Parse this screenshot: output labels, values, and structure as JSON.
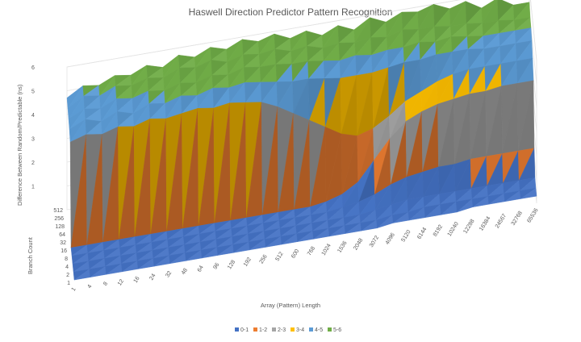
{
  "chart_data": {
    "type": "surface",
    "title": "Haswell Direction Predictor Pattern Recognition",
    "xlabel": "Array (Pattern) Length",
    "ylabel": "Branch Count",
    "zlabel": "Difference Between Random/Predictable (ns)",
    "x": [
      "1",
      "4",
      "8",
      "12",
      "16",
      "24",
      "32",
      "48",
      "64",
      "96",
      "128",
      "192",
      "256",
      "512",
      "600",
      "768",
      "1024",
      "1536",
      "2048",
      "3072",
      "4096",
      "5120",
      "6144",
      "8192",
      "10240",
      "12288",
      "16384",
      "24567",
      "32768",
      "65536"
    ],
    "y": [
      "1",
      "2",
      "4",
      "8",
      "16",
      "32",
      "64",
      "128",
      "256",
      "512"
    ],
    "z_ticks": [
      "1",
      "2",
      "3",
      "4",
      "5",
      "6"
    ],
    "zlim": [
      0,
      6
    ],
    "bands": [
      {
        "name": "0-1",
        "color": "#4472c4"
      },
      {
        "name": "1-2",
        "color": "#ed7d31"
      },
      {
        "name": "2-3",
        "color": "#a5a5a5"
      },
      {
        "name": "3-4",
        "color": "#ffc000"
      },
      {
        "name": "4-5",
        "color": "#5b9bd5"
      },
      {
        "name": "5-6",
        "color": "#70ad47"
      }
    ],
    "legend_position": "bottom",
    "values_note_rows": "approximate surface read from the figure; rows are branch counts 1..512, columns are array lengths",
    "values": [
      [
        0.1,
        0.1,
        0.1,
        0.1,
        0.1,
        0.1,
        0.1,
        0.1,
        0.1,
        0.1,
        0.1,
        0.1,
        0.1,
        0.1,
        0.1,
        0.1,
        0.1,
        0.1,
        0.1,
        0.1,
        0.2,
        0.2,
        0.2,
        0.2,
        0.2,
        0.3,
        0.3,
        0.3,
        0.3,
        0.3
      ],
      [
        0.1,
        0.1,
        0.1,
        0.1,
        0.1,
        0.1,
        0.1,
        0.1,
        0.1,
        0.1,
        0.1,
        0.1,
        0.1,
        0.1,
        0.1,
        0.1,
        0.1,
        0.1,
        0.1,
        0.1,
        0.2,
        0.2,
        0.3,
        0.3,
        0.3,
        0.3,
        0.3,
        0.3,
        0.3,
        0.3
      ],
      [
        0.1,
        0.1,
        0.1,
        0.1,
        0.1,
        0.1,
        0.1,
        0.1,
        0.1,
        0.1,
        0.1,
        0.1,
        0.1,
        0.1,
        0.1,
        0.1,
        0.1,
        0.1,
        0.1,
        0.2,
        0.3,
        0.4,
        0.4,
        0.4,
        0.4,
        0.4,
        0.4,
        0.4,
        0.4,
        0.4
      ],
      [
        0.1,
        0.1,
        0.1,
        0.1,
        0.1,
        0.1,
        0.1,
        0.1,
        0.1,
        0.1,
        0.1,
        0.1,
        0.1,
        0.1,
        0.1,
        0.1,
        0.1,
        0.2,
        0.3,
        0.5,
        0.8,
        1.0,
        1.1,
        1.2,
        1.2,
        1.3,
        1.3,
        1.3,
        1.3,
        1.3
      ],
      [
        0.1,
        0.1,
        0.1,
        0.1,
        0.1,
        0.1,
        0.1,
        0.1,
        0.1,
        0.1,
        0.1,
        0.1,
        0.1,
        0.1,
        0.1,
        0.1,
        0.2,
        0.4,
        0.8,
        1.6,
        2.4,
        3.0,
        3.3,
        3.5,
        3.6,
        3.7,
        3.7,
        3.8,
        3.8,
        3.8
      ],
      [
        4.2,
        4.4,
        4.3,
        4.5,
        4.4,
        4.6,
        4.5,
        4.6,
        4.7,
        4.6,
        4.7,
        4.6,
        4.5,
        4.2,
        3.8,
        3.4,
        3.0,
        2.6,
        2.4,
        2.6,
        3.0,
        3.5,
        3.8,
        4.1,
        4.3,
        4.4,
        4.4,
        4.4,
        4.4,
        4.4
      ],
      [
        4.4,
        4.7,
        4.5,
        4.8,
        4.6,
        4.9,
        4.8,
        5.0,
        4.9,
        5.1,
        5.0,
        5.1,
        5.0,
        4.9,
        4.8,
        4.8,
        4.7,
        4.6,
        4.6,
        4.6,
        4.7,
        4.8,
        4.8,
        4.9,
        4.9,
        4.9,
        4.8,
        4.8,
        4.8,
        4.8
      ],
      [
        4.5,
        4.8,
        4.7,
        5.0,
        4.9,
        5.1,
        5.0,
        5.2,
        5.1,
        5.3,
        5.2,
        5.4,
        5.3,
        5.3,
        5.2,
        5.2,
        5.1,
        5.0,
        5.1,
        5.0,
        5.1,
        5.1,
        5.2,
        5.1,
        5.2,
        5.1,
        5.0,
        5.0,
        5.0,
        5.0
      ],
      [
        4.6,
        5.0,
        4.9,
        5.2,
        5.1,
        5.3,
        5.2,
        5.5,
        5.4,
        5.6,
        5.4,
        5.6,
        5.5,
        5.6,
        5.4,
        5.5,
        5.3,
        5.4,
        5.3,
        5.4,
        5.3,
        5.5,
        5.4,
        5.4,
        5.3,
        5.3,
        5.2,
        5.2,
        5.1,
        5.1
      ],
      [
        4.7,
        5.1,
        5.0,
        5.3,
        5.2,
        5.5,
        5.3,
        5.7,
        5.5,
        5.8,
        5.6,
        5.9,
        5.7,
        5.9,
        5.6,
        5.8,
        5.5,
        5.8,
        5.5,
        5.9,
        5.6,
        5.9,
        5.8,
        6.0,
        5.7,
        5.9,
        5.5,
        5.8,
        5.4,
        5.4
      ]
    ]
  }
}
